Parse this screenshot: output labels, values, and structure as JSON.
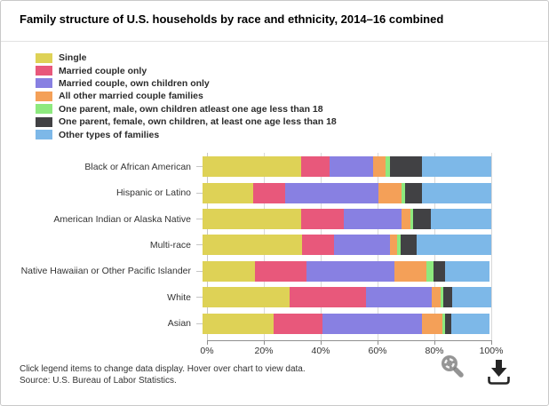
{
  "footer": {
    "hint": "Click legend items to change data display. Hover over chart to view data.",
    "source": "Source: U.S. Bureau of Labor Statistics."
  },
  "icons": {
    "zoom": "magnifier-icon",
    "download": "download-icon"
  },
  "chart_data": {
    "type": "bar",
    "orientation": "horizontal",
    "stacked": true,
    "title": "Family structure of U.S. households by race and ethnicity, 2014–16 combined",
    "categories": [
      "Black or African American",
      "Hispanic or Latino",
      "American Indian or Alaska Native",
      "Multi-race",
      "Native Hawaiian or Other Pacific Islander",
      "White",
      "Asian"
    ],
    "series": [
      {
        "name": "Single",
        "color": "#ded256",
        "values": [
          34,
          17.5,
          34,
          34.5,
          18,
          30,
          24.5
        ]
      },
      {
        "name": "Married couple only",
        "color": "#e8587b",
        "values": [
          10,
          11,
          15,
          11,
          18,
          26.5,
          17
        ]
      },
      {
        "name": "Married couple, own children only",
        "color": "#8880e2",
        "values": [
          15,
          32.5,
          20,
          19.5,
          30.5,
          23,
          34.5
        ]
      },
      {
        "name": "All other married couple families",
        "color": "#f4a058",
        "values": [
          4.5,
          8,
          3,
          2.5,
          11,
          3,
          7
        ]
      },
      {
        "name": "One parent, male, own children atleast one age less than 18",
        "color": "#8de97e",
        "values": [
          1.5,
          1,
          1,
          1,
          2.5,
          1,
          1
        ]
      },
      {
        "name": "One parent, female, own children, at least one age less than 18",
        "color": "#414144",
        "values": [
          11,
          6,
          6,
          5.5,
          4,
          3,
          2
        ]
      },
      {
        "name": "Other types of families",
        "color": "#7db8e8",
        "values": [
          24,
          24,
          21,
          26,
          15.5,
          13.5,
          13.5
        ]
      }
    ],
    "x_ticks": [
      "0%",
      "20%",
      "40%",
      "60%",
      "80%",
      "100%"
    ],
    "xlim": [
      0,
      100
    ],
    "grid": true,
    "legend_position": "top-left"
  }
}
